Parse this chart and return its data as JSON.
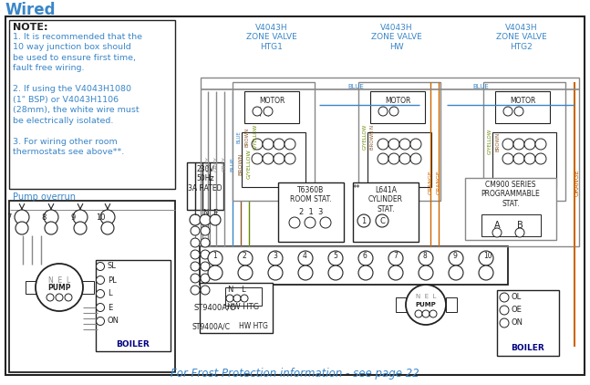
{
  "title": "Wired",
  "title_color": "#3a86c8",
  "title_fontsize": 12,
  "bg_color": "#ffffff",
  "border_color": "#222222",
  "note_title": "NOTE:",
  "note_lines": [
    "1. It is recommended that the",
    "10 way junction box should",
    "be used to ensure first time,",
    "fault free wiring.",
    "",
    "2. If using the V4043H1080",
    "(1\" BSP) or V4043H1106",
    "(28mm), the white wire must",
    "be electrically isolated.",
    "",
    "3. For wiring other room",
    "thermostats see above**."
  ],
  "note_color": "#3a86c8",
  "note_fontsize": 7.0,
  "valve_label_color": "#3a86c8",
  "pump_overrun_color": "#3a86c8",
  "footer_text": "For Frost Protection information - see page 22",
  "footer_color": "#3a86c8",
  "footer_fontsize": 8.5,
  "grey": "#888888",
  "blue": "#3a86c8",
  "brown": "#8b5a2b",
  "gyellow": "#6a8a00",
  "orange": "#cc6600",
  "black": "#222222",
  "darkblue": "#000080"
}
